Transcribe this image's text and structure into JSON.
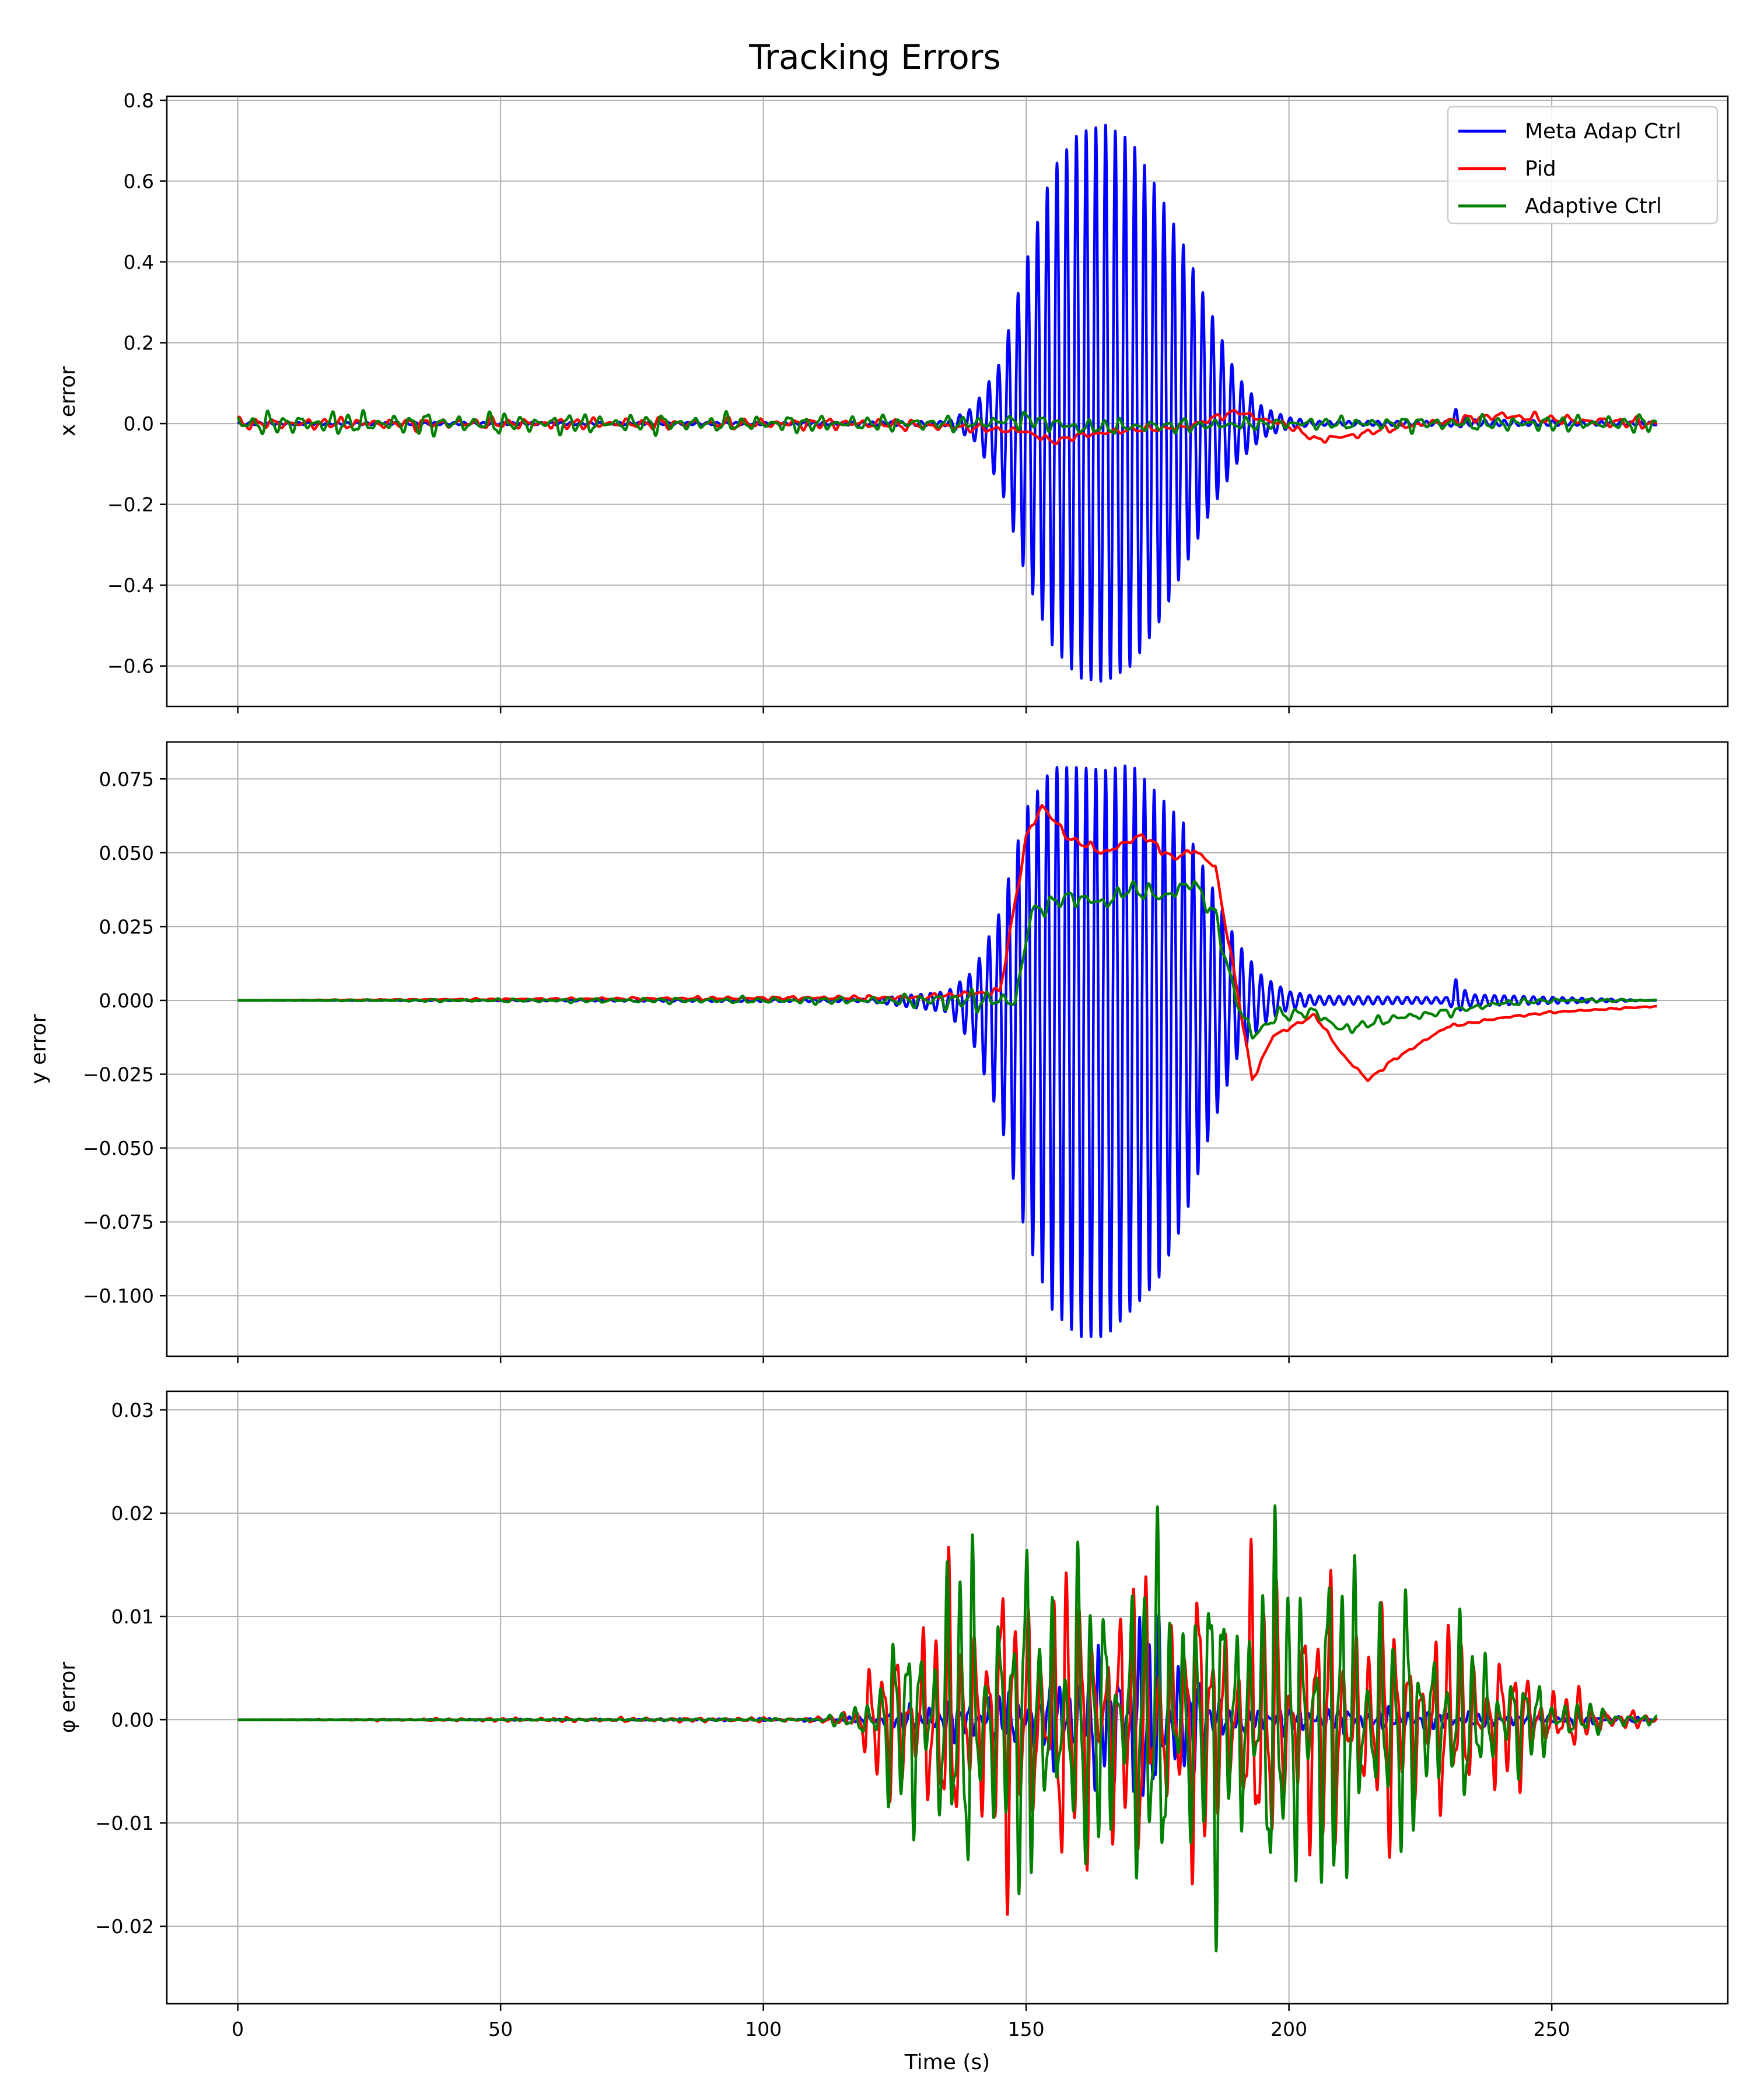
{
  "figure": {
    "title": "Tracking Errors"
  },
  "colors": {
    "meta": "#0000ff",
    "pid": "#ff0000",
    "adaptive": "#008000",
    "grid": "#b0b0b0"
  },
  "chart_data": [
    {
      "type": "line",
      "id": "x-error",
      "title": "",
      "xlabel": "",
      "ylabel": "x error",
      "xlim": [
        -13.5,
        283.5
      ],
      "ylim": [
        -0.7,
        0.81
      ],
      "xticks": [
        0,
        50,
        100,
        150,
        200,
        250
      ],
      "yticks": [
        -0.6,
        -0.4,
        -0.2,
        0.0,
        0.2,
        0.4,
        0.6,
        0.8
      ],
      "ytick_labels": [
        "−0.6",
        "−0.4",
        "−0.2",
        "0.0",
        "0.2",
        "0.4",
        "0.6",
        "0.8"
      ],
      "show_xtick_labels": false,
      "grid": true,
      "legend": {
        "placement": "upper-right",
        "entries": [
          "Meta Adap Ctrl",
          "Pid",
          "Adaptive Ctrl"
        ]
      },
      "series": [
        {
          "name": "Meta Adap Ctrl",
          "color": "meta",
          "envelope": [
            [
              0,
              0.003
            ],
            [
              100,
              0.003
            ],
            [
              135,
              0.006
            ],
            [
              140,
              0.04
            ],
            [
              145,
              0.15
            ],
            [
              150,
              0.4
            ],
            [
              155,
              0.63
            ],
            [
              160,
              0.72
            ],
            [
              165,
              0.74
            ],
            [
              170,
              0.7
            ],
            [
              175,
              0.58
            ],
            [
              180,
              0.44
            ],
            [
              185,
              0.28
            ],
            [
              190,
              0.12
            ],
            [
              195,
              0.04
            ],
            [
              200,
              0.015
            ],
            [
              205,
              0.006
            ],
            [
              230,
              0.006
            ],
            [
              232,
              0.04
            ],
            [
              234,
              0.01
            ],
            [
              270,
              0.004
            ]
          ],
          "neg_envelope": [
            [
              0,
              -0.003
            ],
            [
              100,
              -0.003
            ],
            [
              135,
              -0.006
            ],
            [
              140,
              -0.04
            ],
            [
              145,
              -0.15
            ],
            [
              150,
              -0.38
            ],
            [
              155,
              -0.55
            ],
            [
              160,
              -0.63
            ],
            [
              165,
              -0.64
            ],
            [
              170,
              -0.6
            ],
            [
              175,
              -0.5
            ],
            [
              180,
              -0.36
            ],
            [
              185,
              -0.22
            ],
            [
              190,
              -0.1
            ],
            [
              195,
              -0.035
            ],
            [
              200,
              -0.012
            ],
            [
              205,
              -0.005
            ],
            [
              230,
              -0.005
            ],
            [
              232,
              -0.01
            ],
            [
              234,
              -0.006
            ],
            [
              270,
              -0.004
            ]
          ],
          "period": 1.85
        },
        {
          "name": "Pid",
          "color": "pid",
          "baseline": [
            [
              0,
              0.0
            ],
            [
              120,
              0.0
            ],
            [
              140,
              -0.01
            ],
            [
              150,
              -0.02
            ],
            [
              155,
              -0.045
            ],
            [
              160,
              -0.03
            ],
            [
              170,
              -0.015
            ],
            [
              180,
              -0.01
            ],
            [
              190,
              0.03
            ],
            [
              195,
              0.01
            ],
            [
              200,
              -0.005
            ],
            [
              205,
              -0.04
            ],
            [
              212,
              -0.03
            ],
            [
              220,
              -0.01
            ],
            [
              240,
              0.02
            ],
            [
              250,
              0.01
            ],
            [
              270,
              0.0
            ]
          ],
          "amp": [
            [
              0,
              0.02
            ],
            [
              120,
              0.02
            ],
            [
              150,
              0.012
            ],
            [
              200,
              0.012
            ],
            [
              270,
              0.02
            ]
          ],
          "period": 3.2
        },
        {
          "name": "Adaptive Ctrl",
          "color": "adaptive",
          "baseline": [
            [
              0,
              0.0
            ],
            [
              140,
              0.0
            ],
            [
              150,
              0.01
            ],
            [
              160,
              -0.01
            ],
            [
              200,
              0.0
            ],
            [
              270,
              0.0
            ]
          ],
          "amp": [
            [
              0,
              0.035
            ],
            [
              20,
              0.04
            ],
            [
              100,
              0.03
            ],
            [
              140,
              0.025
            ],
            [
              150,
              0.03
            ],
            [
              200,
              0.02
            ],
            [
              220,
              0.025
            ],
            [
              270,
              0.03
            ]
          ],
          "period": 3.0
        }
      ]
    },
    {
      "type": "line",
      "id": "y-error",
      "title": "",
      "xlabel": "",
      "ylabel": "y error",
      "xlim": [
        -13.5,
        283.5
      ],
      "ylim": [
        -0.1205,
        0.0875
      ],
      "xticks": [
        0,
        50,
        100,
        150,
        200,
        250
      ],
      "yticks": [
        -0.1,
        -0.075,
        -0.05,
        -0.025,
        0.0,
        0.025,
        0.05,
        0.075
      ],
      "ytick_labels": [
        "−0.100",
        "−0.075",
        "−0.050",
        "−0.025",
        "0.000",
        "0.025",
        "0.050",
        "0.075"
      ],
      "show_xtick_labels": false,
      "grid": true,
      "series": [
        {
          "name": "Meta Adap Ctrl",
          "color": "meta",
          "envelope": [
            [
              0,
              0.0
            ],
            [
              120,
              0.0005
            ],
            [
              135,
              0.003
            ],
            [
              140,
              0.01
            ],
            [
              145,
              0.03
            ],
            [
              150,
              0.065
            ],
            [
              155,
              0.079
            ],
            [
              160,
              0.079
            ],
            [
              165,
              0.078
            ],
            [
              170,
              0.08
            ],
            [
              175,
              0.07
            ],
            [
              180,
              0.06
            ],
            [
              185,
              0.04
            ],
            [
              190,
              0.02
            ],
            [
              195,
              0.008
            ],
            [
              200,
              0.003
            ],
            [
              205,
              0.0015
            ],
            [
              230,
              0.001
            ],
            [
              232,
              0.008
            ],
            [
              234,
              0.002
            ],
            [
              270,
              0.0
            ]
          ],
          "neg_envelope": [
            [
              0,
              0.0
            ],
            [
              120,
              -0.0005
            ],
            [
              135,
              -0.004
            ],
            [
              140,
              -0.015
            ],
            [
              145,
              -0.04
            ],
            [
              150,
              -0.08
            ],
            [
              155,
              -0.105
            ],
            [
              160,
              -0.114
            ],
            [
              165,
              -0.114
            ],
            [
              170,
              -0.105
            ],
            [
              175,
              -0.095
            ],
            [
              180,
              -0.075
            ],
            [
              185,
              -0.045
            ],
            [
              190,
              -0.02
            ],
            [
              195,
              -0.008
            ],
            [
              200,
              -0.003
            ],
            [
              205,
              -0.0015
            ],
            [
              230,
              -0.001
            ],
            [
              232,
              -0.004
            ],
            [
              234,
              -0.002
            ],
            [
              270,
              0.0
            ]
          ],
          "period": 1.85
        },
        {
          "name": "Pid",
          "color": "pid",
          "baseline": [
            [
              0,
              0.0
            ],
            [
              130,
              0.001
            ],
            [
              145,
              0.003
            ],
            [
              150,
              0.055
            ],
            [
              153,
              0.066
            ],
            [
              158,
              0.055
            ],
            [
              165,
              0.05
            ],
            [
              172,
              0.056
            ],
            [
              178,
              0.048
            ],
            [
              182,
              0.051
            ],
            [
              186,
              0.045
            ],
            [
              190,
              0.005
            ],
            [
              193,
              -0.027
            ],
            [
              197,
              -0.012
            ],
            [
              205,
              -0.005
            ],
            [
              210,
              -0.018
            ],
            [
              215,
              -0.027
            ],
            [
              220,
              -0.02
            ],
            [
              230,
              -0.009
            ],
            [
              240,
              -0.006
            ],
            [
              250,
              -0.004
            ],
            [
              270,
              -0.002
            ]
          ],
          "amp": [
            [
              0,
              0.0
            ],
            [
              130,
              0.0012
            ],
            [
              150,
              0.002
            ],
            [
              190,
              0.0015
            ],
            [
              200,
              0.001
            ],
            [
              270,
              0.0003
            ]
          ],
          "period": 3.0
        },
        {
          "name": "Adaptive Ctrl",
          "color": "adaptive",
          "baseline": [
            [
              0,
              0.0
            ],
            [
              140,
              0.0
            ],
            [
              148,
              0.0
            ],
            [
              151,
              0.03
            ],
            [
              158,
              0.035
            ],
            [
              165,
              0.033
            ],
            [
              170,
              0.038
            ],
            [
              176,
              0.035
            ],
            [
              182,
              0.04
            ],
            [
              186,
              0.028
            ],
            [
              190,
              0.0
            ],
            [
              193,
              -0.012
            ],
            [
              198,
              -0.005
            ],
            [
              205,
              -0.004
            ],
            [
              210,
              -0.01
            ],
            [
              220,
              -0.006
            ],
            [
              230,
              -0.004
            ],
            [
              240,
              -0.001
            ],
            [
              250,
              0.0
            ],
            [
              270,
              0.0
            ]
          ],
          "amp": [
            [
              0,
              0.0
            ],
            [
              125,
              0.002
            ],
            [
              135,
              0.006
            ],
            [
              145,
              0.004
            ],
            [
              150,
              0.004
            ],
            [
              190,
              0.004
            ],
            [
              200,
              0.003
            ],
            [
              230,
              0.002
            ],
            [
              270,
              0.0003
            ]
          ],
          "period": 3.1
        }
      ]
    },
    {
      "type": "line",
      "id": "phi-error",
      "title": "",
      "xlabel": "Time (s)",
      "ylabel": "φ error",
      "xlim": [
        -13.5,
        283.5
      ],
      "ylim": [
        -0.0275,
        0.0318
      ],
      "xticks": [
        0,
        50,
        100,
        150,
        200,
        250
      ],
      "xtick_labels": [
        "0",
        "50",
        "100",
        "150",
        "200",
        "250"
      ],
      "yticks": [
        -0.02,
        -0.01,
        0.0,
        0.01,
        0.02,
        0.03
      ],
      "ytick_labels": [
        "−0.02",
        "−0.01",
        "0.00",
        "0.01",
        "0.02",
        "0.03"
      ],
      "show_xtick_labels": true,
      "grid": true,
      "series": [
        {
          "name": "Meta Adap Ctrl",
          "color": "meta",
          "baseline": [
            [
              0,
              0.0
            ],
            [
              270,
              0.0
            ]
          ],
          "amp": [
            [
              0,
              0.0
            ],
            [
              115,
              0.0002
            ],
            [
              130,
              0.002
            ],
            [
              150,
              0.004
            ],
            [
              160,
              0.007
            ],
            [
              170,
              0.012
            ],
            [
              175,
              0.014
            ],
            [
              180,
              0.008
            ],
            [
              190,
              0.002
            ],
            [
              240,
              0.001
            ],
            [
              270,
              0.0003
            ]
          ],
          "period": 1.9
        },
        {
          "name": "Pid",
          "color": "pid",
          "baseline": [
            [
              0,
              0.0
            ],
            [
              270,
              0.0
            ]
          ],
          "amp": [
            [
              0,
              0.0
            ],
            [
              60,
              0.0003
            ],
            [
              110,
              0.0003
            ],
            [
              115,
              0.001
            ],
            [
              125,
              0.012
            ],
            [
              140,
              0.02
            ],
            [
              160,
              0.02
            ],
            [
              180,
              0.018
            ],
            [
              200,
              0.02
            ],
            [
              220,
              0.015
            ],
            [
              240,
              0.01
            ],
            [
              250,
              0.005
            ],
            [
              260,
              0.002
            ],
            [
              270,
              0.0005
            ]
          ],
          "period": 2.5
        },
        {
          "name": "Adaptive Ctrl",
          "color": "adaptive",
          "baseline": [
            [
              0,
              0.0
            ],
            [
              270,
              0.0
            ]
          ],
          "amp": [
            [
              0,
              0.0
            ],
            [
              110,
              0.0002
            ],
            [
              115,
              0.001
            ],
            [
              120,
              0.004
            ],
            [
              125,
              0.012
            ],
            [
              135,
              0.022
            ],
            [
              150,
              0.022
            ],
            [
              165,
              0.02
            ],
            [
              175,
              0.024
            ],
            [
              190,
              0.022
            ],
            [
              205,
              0.026
            ],
            [
              215,
              0.02
            ],
            [
              230,
              0.013
            ],
            [
              240,
              0.009
            ],
            [
              250,
              0.004
            ],
            [
              260,
              0.0015
            ],
            [
              270,
              0.0005
            ]
          ],
          "period": 2.5
        }
      ]
    }
  ]
}
